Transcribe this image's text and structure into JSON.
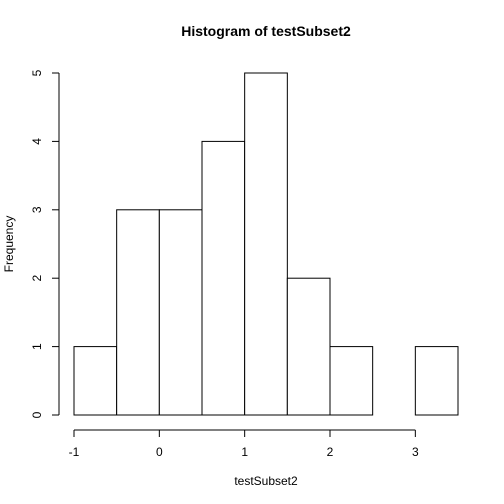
{
  "chart_data": {
    "type": "bar",
    "title": "Histogram of testSubset2",
    "xlabel": "testSubset2",
    "ylabel": "Frequency",
    "bins": [
      {
        "from": -1.0,
        "to": -0.5,
        "count": 1
      },
      {
        "from": -0.5,
        "to": 0.0,
        "count": 3
      },
      {
        "from": 0.0,
        "to": 0.5,
        "count": 3
      },
      {
        "from": 0.5,
        "to": 1.0,
        "count": 4
      },
      {
        "from": 1.0,
        "to": 1.5,
        "count": 5
      },
      {
        "from": 1.5,
        "to": 2.0,
        "count": 2
      },
      {
        "from": 2.0,
        "to": 2.5,
        "count": 1
      },
      {
        "from": 2.5,
        "to": 3.0,
        "count": 0
      },
      {
        "from": 3.0,
        "to": 3.5,
        "count": 1
      }
    ],
    "xlim": [
      -1.0,
      3.5
    ],
    "ylim": [
      0,
      5
    ],
    "x_ticks": [
      -1,
      0,
      1,
      2,
      3
    ],
    "x_tick_labels": [
      "-1",
      "0",
      "1",
      "2",
      "3"
    ],
    "y_ticks": [
      0,
      1,
      2,
      3,
      4,
      5
    ],
    "y_tick_labels": [
      "0",
      "1",
      "2",
      "3",
      "4",
      "5"
    ],
    "grid": false,
    "legend": "none"
  }
}
